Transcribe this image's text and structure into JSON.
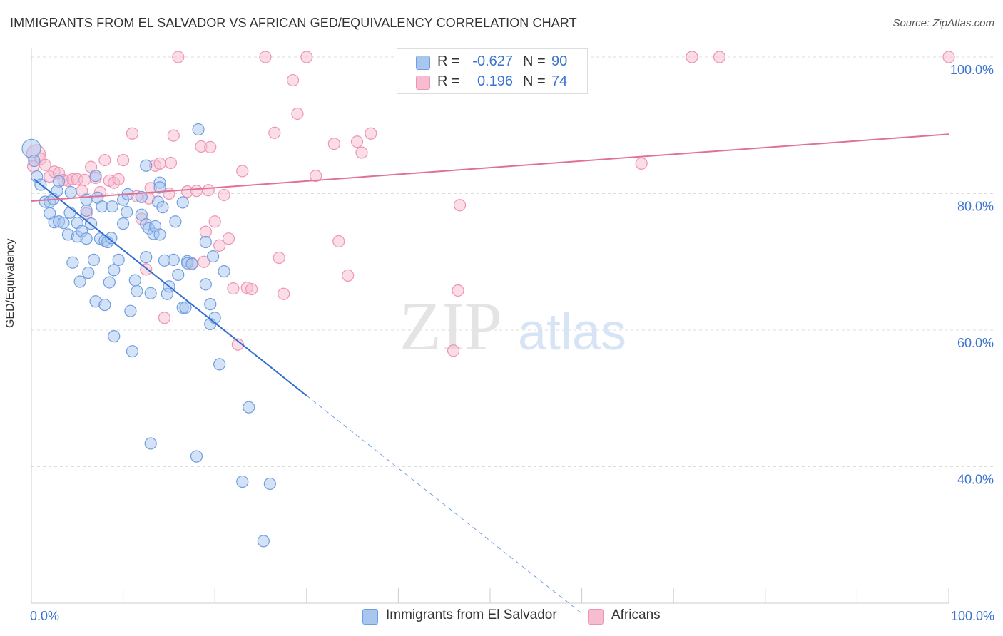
{
  "title": "IMMIGRANTS FROM EL SALVADOR VS AFRICAN GED/EQUIVALENCY CORRELATION CHART",
  "source": "Source: ZipAtlas.com",
  "watermark": {
    "zip": "ZIP",
    "atlas": "atlas"
  },
  "colors": {
    "blue_fill": "#a9c6ef",
    "blue_stroke": "#6f9fe0",
    "blue_line": "#2f6fd0",
    "pink_fill": "#f6bcd0",
    "pink_stroke": "#ef94b4",
    "pink_line": "#e0709a",
    "axis_label": "#3b74d0",
    "grid": "#dddddd"
  },
  "legend": {
    "rows": [
      {
        "r_label": "R =",
        "r_value": "-0.627",
        "n_label": "N =",
        "n_value": "90"
      },
      {
        "r_label": "R =",
        "r_value": "0.196",
        "n_label": "N =",
        "n_value": "74"
      }
    ]
  },
  "bottom_legend": [
    "Immigrants from El Salvador",
    "Africans"
  ],
  "chart_data": {
    "type": "scatter",
    "title": "IMMIGRANTS FROM EL SALVADOR VS AFRICAN GED/EQUIVALENCY CORRELATION CHART",
    "xlabel": "",
    "ylabel": "GED/Equivalency",
    "xlim": [
      0,
      100
    ],
    "ylim": [
      20,
      100
    ],
    "x_tick_labels": [
      "0.0%",
      "100.0%"
    ],
    "y_ticks": [
      40,
      60,
      80,
      100
    ],
    "y_tick_labels": [
      "40.0%",
      "60.0%",
      "80.0%",
      "100.0%"
    ],
    "grid": true,
    "legend_placement": "top-center",
    "series": [
      {
        "name": "Immigrants from El Salvador",
        "color": "#6f9fe0",
        "trend": {
          "x0": 0.3,
          "y0": 82.1,
          "x1": 30,
          "y1": 50.4,
          "dash_to_x": 60,
          "dash_to_y": 18.5
        },
        "points": [
          [
            0,
            86.6
          ],
          [
            0.3,
            84.8
          ],
          [
            0.6,
            82.5
          ],
          [
            1,
            81.3
          ],
          [
            1.5,
            78.8
          ],
          [
            2,
            77.1
          ],
          [
            2,
            78.8
          ],
          [
            2.4,
            79.2
          ],
          [
            2.5,
            75.8
          ],
          [
            3,
            81.8
          ],
          [
            2.8,
            80.4
          ],
          [
            3,
            75.9
          ],
          [
            3.5,
            75.7
          ],
          [
            4,
            74
          ],
          [
            4.2,
            77.2
          ],
          [
            4.3,
            80.2
          ],
          [
            4.5,
            69.9
          ],
          [
            5,
            75.7
          ],
          [
            5,
            73.7
          ],
          [
            5.3,
            67.1
          ],
          [
            5.5,
            74.5
          ],
          [
            6,
            77.5
          ],
          [
            6,
            73.4
          ],
          [
            6,
            79.1
          ],
          [
            6.2,
            68.4
          ],
          [
            6.5,
            75.6
          ],
          [
            6.8,
            70.3
          ],
          [
            7,
            82.6
          ],
          [
            7,
            64.2
          ],
          [
            7.2,
            79.4
          ],
          [
            7.5,
            73.4
          ],
          [
            7.7,
            78.1
          ],
          [
            8,
            73.1
          ],
          [
            8,
            63.7
          ],
          [
            8.3,
            72.9
          ],
          [
            8.5,
            67
          ],
          [
            8.7,
            73.5
          ],
          [
            8.8,
            78.1
          ],
          [
            9,
            68.8
          ],
          [
            9,
            59.1
          ],
          [
            9.5,
            70.3
          ],
          [
            10,
            79.1
          ],
          [
            10,
            75.6
          ],
          [
            10.4,
            77.3
          ],
          [
            10.5,
            79.9
          ],
          [
            10.8,
            62.8
          ],
          [
            11,
            56.9
          ],
          [
            11.3,
            67.3
          ],
          [
            11.5,
            65.7
          ],
          [
            12,
            76.9
          ],
          [
            12,
            79.5
          ],
          [
            12.5,
            75.5
          ],
          [
            12.5,
            84.1
          ],
          [
            12.5,
            70.7
          ],
          [
            12.8,
            74.9
          ],
          [
            13,
            65.4
          ],
          [
            13,
            43.4
          ],
          [
            13.3,
            74.1
          ],
          [
            13.5,
            75.2
          ],
          [
            13.8,
            78.8
          ],
          [
            14,
            81.6
          ],
          [
            14,
            74
          ],
          [
            14,
            80.9
          ],
          [
            14.3,
            78
          ],
          [
            14.5,
            70.2
          ],
          [
            14.8,
            65.3
          ],
          [
            15,
            66.4
          ],
          [
            15.5,
            70.3
          ],
          [
            15.7,
            75.9
          ],
          [
            16,
            68.1
          ],
          [
            16.5,
            63.3
          ],
          [
            16.5,
            78.7
          ],
          [
            17,
            70.1
          ],
          [
            17,
            69.8
          ],
          [
            17.5,
            69.7
          ],
          [
            18,
            41.5
          ],
          [
            18.2,
            89.4
          ],
          [
            19,
            66.7
          ],
          [
            19,
            72.9
          ],
          [
            19.5,
            63.8
          ],
          [
            19.5,
            60.9
          ],
          [
            19.8,
            70.8
          ],
          [
            20,
            61.8
          ],
          [
            20.5,
            55
          ],
          [
            21,
            68.6
          ],
          [
            23.7,
            48.7
          ],
          [
            23,
            37.8
          ],
          [
            26,
            37.5
          ],
          [
            25.3,
            29.1
          ],
          [
            16.8,
            63.3
          ]
        ]
      },
      {
        "name": "Africans",
        "color": "#ef94b4",
        "trend": {
          "x0": 0,
          "y0": 78.9,
          "x1": 100,
          "y1": 88.7
        },
        "points": [
          [
            0.5,
            85.8
          ],
          [
            1,
            85.1
          ],
          [
            1.5,
            84.2
          ],
          [
            2,
            82.5
          ],
          [
            2.5,
            83.2
          ],
          [
            3,
            83
          ],
          [
            3.5,
            82
          ],
          [
            4,
            81.9
          ],
          [
            4.5,
            82.1
          ],
          [
            5,
            82.1
          ],
          [
            5.5,
            80.4
          ],
          [
            6,
            77.1
          ],
          [
            6.5,
            83.9
          ],
          [
            7,
            82.3
          ],
          [
            7.5,
            80.2
          ],
          [
            8,
            84.9
          ],
          [
            8.5,
            81.9
          ],
          [
            9,
            81.6
          ],
          [
            9.5,
            82.1
          ],
          [
            10,
            84.9
          ],
          [
            11,
            88.8
          ],
          [
            11.5,
            79.6
          ],
          [
            12,
            76.3
          ],
          [
            12.5,
            68.9
          ],
          [
            13,
            80.8
          ],
          [
            13.5,
            84.1
          ],
          [
            14,
            84.4
          ],
          [
            14.5,
            61.8
          ],
          [
            15,
            80
          ],
          [
            15.5,
            88.5
          ],
          [
            16,
            100
          ],
          [
            17,
            80.3
          ],
          [
            17.5,
            69.8
          ],
          [
            18,
            80.4
          ],
          [
            18.5,
            86.9
          ],
          [
            19,
            74.4
          ],
          [
            19.5,
            86.8
          ],
          [
            20,
            75.9
          ],
          [
            20.5,
            72.4
          ],
          [
            21,
            79.8
          ],
          [
            21.5,
            73.4
          ],
          [
            22,
            66.1
          ],
          [
            22.5,
            57.9
          ],
          [
            23,
            83.3
          ],
          [
            23.5,
            66.2
          ],
          [
            24,
            66
          ],
          [
            25.5,
            100
          ],
          [
            26.5,
            88.9
          ],
          [
            27,
            70.6
          ],
          [
            27.5,
            65.3
          ],
          [
            28.5,
            96.6
          ],
          [
            29,
            91.7
          ],
          [
            30,
            100
          ],
          [
            31,
            82.6
          ],
          [
            33,
            87.3
          ],
          [
            34.5,
            68
          ],
          [
            35.5,
            87.6
          ],
          [
            36,
            86
          ],
          [
            37,
            88.8
          ],
          [
            44.5,
            100
          ],
          [
            46,
            57
          ],
          [
            46.5,
            65.8
          ],
          [
            46.7,
            78.3
          ],
          [
            66.5,
            84.4
          ],
          [
            72,
            100
          ],
          [
            75,
            100
          ],
          [
            100,
            100
          ],
          [
            18.8,
            70
          ],
          [
            33.5,
            73
          ],
          [
            0.2,
            84
          ],
          [
            5.8,
            82
          ],
          [
            12.8,
            79.3
          ],
          [
            19.3,
            80.5
          ],
          [
            15.2,
            84.5
          ]
        ]
      }
    ]
  }
}
